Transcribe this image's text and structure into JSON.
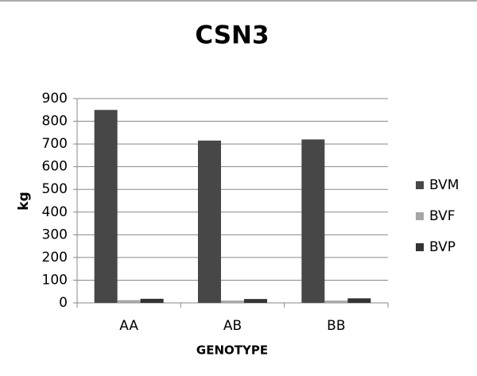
{
  "chart_data": {
    "type": "bar",
    "title": "CSN3",
    "y_label": "kg",
    "x_label": "GENOTYPE",
    "categories": [
      "AA",
      "AB",
      "BB"
    ],
    "series": [
      {
        "name": "BVM",
        "color": "#474747",
        "values": [
          850,
          715,
          720
        ]
      },
      {
        "name": "BVF",
        "color": "#a6a6a6",
        "values": [
          12,
          10,
          10
        ]
      },
      {
        "name": "BVP",
        "color": "#333333",
        "values": [
          18,
          17,
          20
        ]
      }
    ],
    "ylim": [
      0,
      900
    ],
    "yticks": [
      0,
      100,
      200,
      300,
      400,
      500,
      600,
      700,
      800,
      900
    ],
    "grid": true,
    "legend": "right"
  }
}
